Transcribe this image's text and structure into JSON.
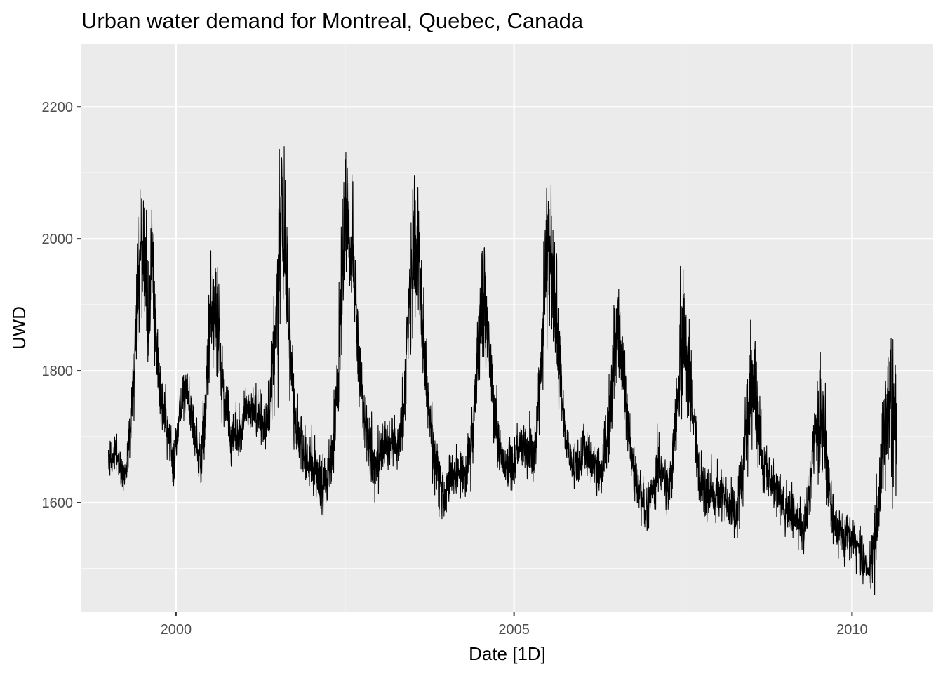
{
  "chart_data": {
    "type": "line",
    "title": "Urban water demand for Montreal, Quebec, Canada",
    "xlabel": "Date [1D]",
    "ylabel": "UWD",
    "x_range": [
      "1999-01-01",
      "2010-08-31"
    ],
    "xlim": [
      1998.6,
      2011.2
    ],
    "ylim": [
      1434,
      2296
    ],
    "x_ticks": [
      {
        "value": 2000,
        "label": "2000"
      },
      {
        "value": 2005,
        "label": "2005"
      },
      {
        "value": 2010,
        "label": "2010"
      }
    ],
    "y_ticks": [
      {
        "value": 1600,
        "label": "1600"
      },
      {
        "value": 1800,
        "label": "1800"
      },
      {
        "value": 2000,
        "label": "2000"
      },
      {
        "value": 2200,
        "label": "2200"
      }
    ],
    "grid": true,
    "legend": "none",
    "colors": {
      "panel": "#ebebeb",
      "grid": "#ffffff",
      "line": "#000000"
    },
    "series": [
      {
        "x": [
          "1999-01-01",
          "1999-02-15",
          "1999-04-01",
          "1999-05-01",
          "1999-06-01",
          "1999-06-20",
          "1999-07-10",
          "1999-08-01",
          "1999-08-25",
          "1999-09-20",
          "1999-10-20",
          "1999-11-20",
          "1999-12-20",
          "2000-01-20",
          "2000-03-01",
          "2000-04-15",
          "2000-05-15",
          "2000-06-10",
          "2000-07-01",
          "2000-07-25",
          "2000-08-20",
          "2000-09-20",
          "2000-10-20",
          "2000-11-20",
          "2000-12-20",
          "2001-01-20",
          "2001-03-01",
          "2001-04-15",
          "2001-05-20",
          "2001-06-15",
          "2001-07-10",
          "2001-07-25",
          "2001-08-15",
          "2001-09-10",
          "2001-10-10",
          "2001-11-10",
          "2001-12-20",
          "2002-01-20",
          "2002-03-01",
          "2002-04-15",
          "2002-05-20",
          "2002-06-20",
          "2002-07-10",
          "2002-08-01",
          "2002-08-25",
          "2002-09-20",
          "2002-10-20",
          "2002-11-20",
          "2002-12-20",
          "2003-01-20",
          "2003-03-01",
          "2003-04-15",
          "2003-05-20",
          "2003-06-15",
          "2003-07-10",
          "2003-08-01",
          "2003-08-25",
          "2003-09-20",
          "2003-10-20",
          "2003-11-20",
          "2003-12-20",
          "2004-01-20",
          "2004-03-01",
          "2004-04-15",
          "2004-05-20",
          "2004-06-20",
          "2004-07-15",
          "2004-08-10",
          "2004-09-10",
          "2004-10-10",
          "2004-11-10",
          "2004-12-20",
          "2005-01-20",
          "2005-03-01",
          "2005-04-15",
          "2005-05-20",
          "2005-06-15",
          "2005-07-05",
          "2005-07-25",
          "2005-08-20",
          "2005-09-20",
          "2005-10-20",
          "2005-11-20",
          "2005-12-20",
          "2006-01-20",
          "2006-03-01",
          "2006-04-15",
          "2006-05-20",
          "2006-06-15",
          "2006-07-10",
          "2006-08-01",
          "2006-08-25",
          "2006-09-20",
          "2006-10-20",
          "2006-11-20",
          "2006-12-20",
          "2007-01-20",
          "2007-03-01",
          "2007-04-15",
          "2007-05-20",
          "2007-06-15",
          "2007-07-10",
          "2007-08-01",
          "2007-08-25",
          "2007-09-20",
          "2007-10-20",
          "2007-11-20",
          "2007-12-20",
          "2008-01-20",
          "2008-03-01",
          "2008-04-15",
          "2008-05-20",
          "2008-06-15",
          "2008-07-10",
          "2008-08-01",
          "2008-08-25",
          "2008-09-20",
          "2008-10-20",
          "2008-11-20",
          "2008-12-20",
          "2009-01-20",
          "2009-03-01",
          "2009-04-15",
          "2009-05-20",
          "2009-06-15",
          "2009-07-10",
          "2009-08-01",
          "2009-08-25",
          "2009-09-20",
          "2009-10-20",
          "2009-11-20",
          "2009-12-20",
          "2010-01-20",
          "2010-03-01",
          "2010-04-10",
          "2010-05-10",
          "2010-06-05",
          "2010-07-01",
          "2010-07-25",
          "2010-08-31"
        ],
        "y": [
          1665,
          1670,
          1640,
          1720,
          1880,
          1990,
          1950,
          1900,
          1960,
          1820,
          1740,
          1700,
          1660,
          1740,
          1770,
          1700,
          1660,
          1740,
          1870,
          1900,
          1860,
          1760,
          1700,
          1700,
          1720,
          1740,
          1750,
          1720,
          1730,
          1820,
          1940,
          2050,
          1990,
          1820,
          1720,
          1690,
          1660,
          1650,
          1620,
          1650,
          1760,
          1950,
          2040,
          2000,
          1920,
          1800,
          1720,
          1670,
          1650,
          1680,
          1690,
          1680,
          1760,
          1900,
          2000,
          1960,
          1880,
          1760,
          1680,
          1630,
          1610,
          1640,
          1650,
          1640,
          1700,
          1830,
          1910,
          1870,
          1760,
          1680,
          1660,
          1660,
          1680,
          1680,
          1660,
          1770,
          1910,
          1980,
          1960,
          1870,
          1740,
          1680,
          1660,
          1660,
          1680,
          1660,
          1640,
          1700,
          1800,
          1860,
          1840,
          1760,
          1680,
          1640,
          1610,
          1580,
          1620,
          1660,
          1620,
          1690,
          1800,
          1850,
          1820,
          1740,
          1660,
          1620,
          1610,
          1610,
          1620,
          1600,
          1580,
          1640,
          1750,
          1780,
          1770,
          1680,
          1650,
          1640,
          1620,
          1600,
          1590,
          1580,
          1560,
          1620,
          1700,
          1740,
          1710,
          1640,
          1580,
          1560,
          1550,
          1550,
          1540,
          1510,
          1500,
          1560,
          1650,
          1720,
          1730,
          1740
        ],
        "amplitude": [
          30,
          30,
          30,
          40,
          100,
          120,
          120,
          110,
          100,
          70,
          50,
          40,
          40,
          40,
          40,
          40,
          50,
          80,
          100,
          110,
          90,
          60,
          50,
          50,
          40,
          40,
          40,
          40,
          50,
          100,
          160,
          200,
          140,
          70,
          60,
          50,
          50,
          50,
          50,
          50,
          70,
          110,
          130,
          120,
          100,
          60,
          50,
          50,
          50,
          40,
          40,
          40,
          70,
          110,
          140,
          130,
          100,
          60,
          50,
          50,
          50,
          40,
          40,
          40,
          60,
          80,
          100,
          90,
          60,
          50,
          40,
          40,
          40,
          40,
          40,
          70,
          100,
          140,
          120,
          90,
          50,
          40,
          40,
          40,
          40,
          40,
          40,
          60,
          90,
          120,
          100,
          70,
          50,
          40,
          40,
          40,
          40,
          40,
          40,
          60,
          90,
          120,
          110,
          70,
          50,
          40,
          40,
          40,
          40,
          40,
          40,
          60,
          90,
          110,
          100,
          60,
          50,
          40,
          40,
          40,
          40,
          40,
          40,
          50,
          80,
          110,
          100,
          60,
          40,
          40,
          40,
          40,
          40,
          40,
          40,
          60,
          90,
          120,
          120,
          110
        ]
      }
    ]
  }
}
